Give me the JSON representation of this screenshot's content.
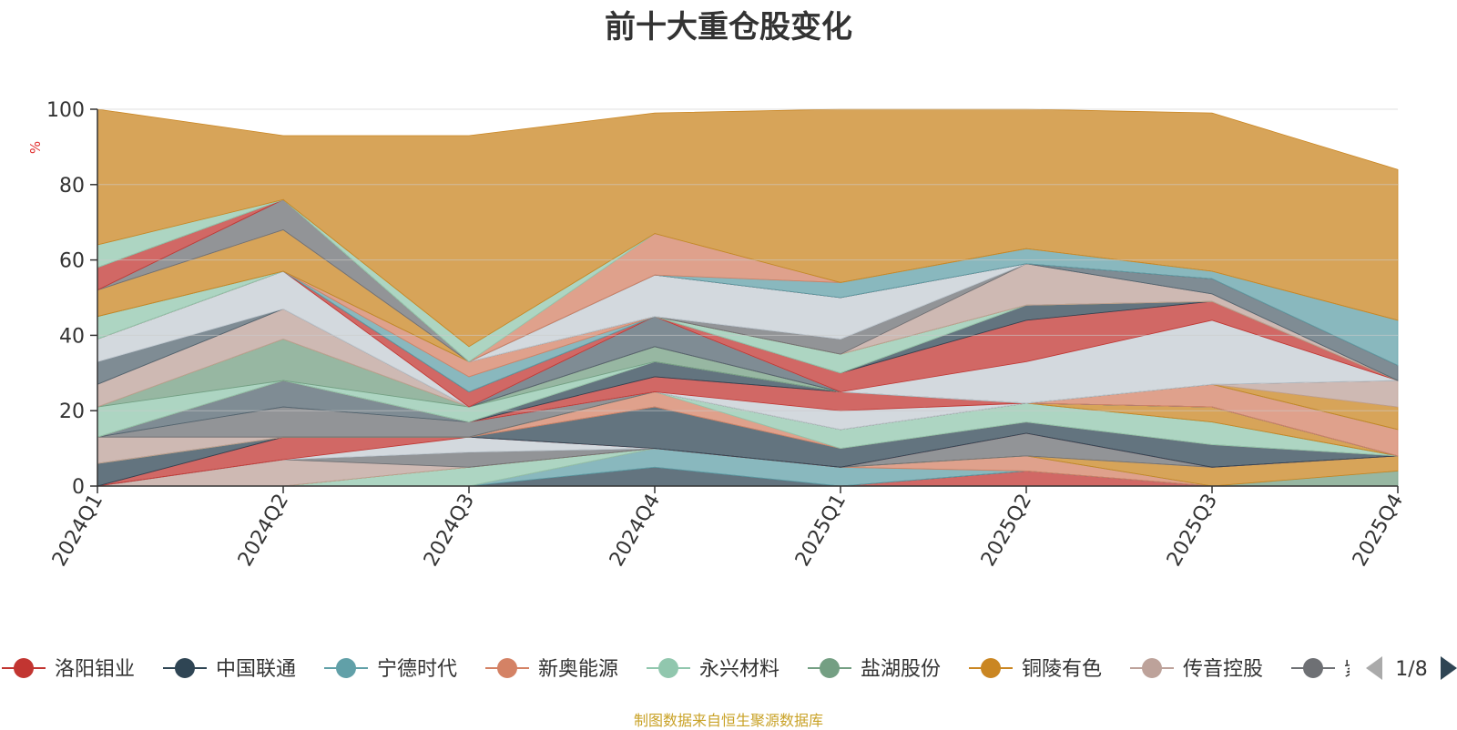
{
  "title": "前十大重仓股变化",
  "source_note": "制图数据来自恒生聚源数据库",
  "legend": {
    "page_indicator": "1/8",
    "truncated_item": "紫"
  },
  "chart_data": {
    "type": "area",
    "stacked": true,
    "title": "前十大重仓股变化",
    "ylabel": "%",
    "ylim": [
      0,
      100
    ],
    "yticks": [
      0,
      20,
      40,
      60,
      80,
      100
    ],
    "categories": [
      "2024Q1",
      "2024Q2",
      "2024Q3",
      "2024Q4",
      "2025Q1",
      "2025Q2",
      "2025Q3",
      "2025Q4"
    ],
    "grid": true,
    "legend_position": "bottom",
    "series": [
      {
        "name": "洛阳钼业",
        "color": "#c23531",
        "values": [
          0,
          0,
          0,
          0,
          0,
          4,
          0,
          0
        ]
      },
      {
        "name": "中国联通",
        "color": "#2f4554",
        "values": [
          0,
          0,
          0,
          5,
          0,
          0,
          0,
          0
        ]
      },
      {
        "name": "宁德时代",
        "color": "#61a0a8",
        "values": [
          0,
          0,
          0,
          5,
          5,
          0,
          0,
          0
        ]
      },
      {
        "name": "新奥能源",
        "color": "#d48265",
        "values": [
          0,
          0,
          0,
          0,
          0,
          4,
          0,
          0
        ]
      },
      {
        "name": "永兴材料",
        "color": "#91c7ae",
        "values": [
          0,
          0,
          5,
          0,
          0,
          0,
          0,
          0
        ]
      },
      {
        "name": "盐湖股份",
        "color": "#749f83",
        "values": [
          0,
          0,
          0,
          0,
          0,
          0,
          0,
          4
        ]
      },
      {
        "name": "铜陵有色",
        "color": "#ca8622",
        "values": [
          0,
          0,
          0,
          0,
          0,
          0,
          5,
          4
        ]
      },
      {
        "name": "传音控股",
        "color": "#bda29a",
        "values": [
          0,
          7,
          0,
          0,
          0,
          0,
          0,
          0
        ]
      },
      {
        "name": "紫",
        "color": "#6e7074",
        "values": [
          0,
          0,
          4,
          0,
          0,
          6,
          0,
          0
        ]
      },
      {
        "name": "",
        "color": "#546570",
        "values": [
          0,
          0,
          0,
          0,
          0,
          0,
          0,
          0
        ]
      },
      {
        "name": "",
        "color": "#c4ccd3",
        "values": [
          0,
          0,
          4,
          0,
          0,
          0,
          0,
          0
        ]
      },
      {
        "name": "",
        "color": "#c23531",
        "values": [
          0,
          6,
          0,
          0,
          0,
          0,
          0,
          0
        ]
      },
      {
        "name": "",
        "color": "#2f4554",
        "values": [
          6,
          0,
          0,
          11,
          5,
          3,
          6,
          0
        ]
      },
      {
        "name": "",
        "color": "#61a0a8",
        "values": [
          0,
          0,
          0,
          0,
          0,
          0,
          0,
          0
        ]
      },
      {
        "name": "",
        "color": "#d48265",
        "values": [
          0,
          0,
          0,
          4,
          0,
          0,
          0,
          0
        ]
      },
      {
        "name": "",
        "color": "#91c7ae",
        "values": [
          0,
          0,
          0,
          0,
          5,
          5,
          6,
          0
        ]
      },
      {
        "name": "",
        "color": "#749f83",
        "values": [
          0,
          0,
          0,
          0,
          0,
          0,
          0,
          0
        ]
      },
      {
        "name": "",
        "color": "#ca8622",
        "values": [
          0,
          0,
          0,
          0,
          0,
          0,
          4,
          0
        ]
      },
      {
        "name": "",
        "color": "#bda29a",
        "values": [
          7,
          0,
          0,
          0,
          0,
          0,
          0,
          0
        ]
      },
      {
        "name": "",
        "color": "#6e7074",
        "values": [
          0,
          8,
          4,
          0,
          0,
          0,
          0,
          0
        ]
      },
      {
        "name": "",
        "color": "#546570",
        "values": [
          0,
          7,
          0,
          0,
          0,
          0,
          0,
          0
        ]
      },
      {
        "name": "",
        "color": "#c4ccd3",
        "values": [
          0,
          0,
          0,
          0,
          5,
          0,
          0,
          0
        ]
      },
      {
        "name": "",
        "color": "#c23531",
        "values": [
          0,
          0,
          0,
          4,
          5,
          0,
          0,
          0
        ]
      },
      {
        "name": "",
        "color": "#2f4554",
        "values": [
          0,
          0,
          0,
          4,
          0,
          0,
          0,
          0
        ]
      },
      {
        "name": "",
        "color": "#61a0a8",
        "values": [
          0,
          0,
          0,
          0,
          0,
          0,
          0,
          0
        ]
      },
      {
        "name": "",
        "color": "#d48265",
        "values": [
          0,
          0,
          0,
          0,
          0,
          0,
          6,
          7
        ]
      },
      {
        "name": "",
        "color": "#91c7ae",
        "values": [
          8,
          0,
          4,
          0,
          0,
          0,
          0,
          0
        ]
      },
      {
        "name": "",
        "color": "#749f83",
        "values": [
          0,
          11,
          0,
          4,
          0,
          0,
          0,
          0
        ]
      },
      {
        "name": "",
        "color": "#ca8622",
        "values": [
          0,
          0,
          0,
          0,
          0,
          0,
          0,
          6
        ]
      },
      {
        "name": "",
        "color": "#bda29a",
        "values": [
          6,
          8,
          0,
          0,
          0,
          0,
          0,
          7
        ]
      },
      {
        "name": "",
        "color": "#6e7074",
        "values": [
          0,
          0,
          0,
          0,
          0,
          0,
          0,
          0
        ]
      },
      {
        "name": "",
        "color": "#546570",
        "values": [
          6,
          0,
          0,
          8,
          0,
          0,
          0,
          0
        ]
      },
      {
        "name": "",
        "color": "#c4ccd3",
        "values": [
          6,
          10,
          0,
          0,
          0,
          11,
          17,
          0
        ]
      },
      {
        "name": "",
        "color": "#c23531",
        "values": [
          0,
          0,
          4,
          0,
          5,
          11,
          5,
          0
        ]
      },
      {
        "name": "",
        "color": "#2f4554",
        "values": [
          0,
          0,
          0,
          0,
          0,
          4,
          0,
          0
        ]
      },
      {
        "name": "",
        "color": "#61a0a8",
        "values": [
          0,
          0,
          4,
          0,
          0,
          0,
          0,
          0
        ]
      },
      {
        "name": "",
        "color": "#d48265",
        "values": [
          0,
          0,
          4,
          0,
          0,
          0,
          0,
          0
        ]
      },
      {
        "name": "",
        "color": "#91c7ae",
        "values": [
          6,
          0,
          0,
          0,
          5,
          0,
          0,
          0
        ]
      },
      {
        "name": "",
        "color": "#749f83",
        "values": [
          0,
          0,
          0,
          0,
          0,
          0,
          0,
          0
        ]
      },
      {
        "name": "",
        "color": "#ca8622",
        "values": [
          7,
          11,
          0,
          0,
          0,
          0,
          0,
          0
        ]
      },
      {
        "name": "",
        "color": "#bda29a",
        "values": [
          0,
          0,
          0,
          0,
          0,
          11,
          2,
          0
        ]
      },
      {
        "name": "",
        "color": "#6e7074",
        "values": [
          0,
          8,
          0,
          0,
          4,
          0,
          0,
          0
        ]
      },
      {
        "name": "",
        "color": "#546570",
        "values": [
          0,
          0,
          0,
          0,
          0,
          0,
          4,
          4
        ]
      },
      {
        "name": "",
        "color": "#c4ccd3",
        "values": [
          0,
          0,
          0,
          11,
          11,
          0,
          0,
          0
        ]
      },
      {
        "name": "",
        "color": "#c23531",
        "values": [
          6,
          0,
          0,
          0,
          0,
          0,
          0,
          0
        ]
      },
      {
        "name": "",
        "color": "#2f4554",
        "values": [
          0,
          0,
          0,
          0,
          0,
          0,
          0,
          0
        ]
      },
      {
        "name": "",
        "color": "#61a0a8",
        "values": [
          0,
          0,
          0,
          0,
          4,
          4,
          2,
          12
        ]
      },
      {
        "name": "",
        "color": "#d48265",
        "values": [
          0,
          0,
          0,
          11,
          0,
          0,
          0,
          0
        ]
      },
      {
        "name": "",
        "color": "#91c7ae",
        "values": [
          6,
          0,
          4,
          0,
          0,
          0,
          0,
          0
        ]
      },
      {
        "name": "",
        "color": "#ca8622",
        "values": [
          36,
          17,
          56,
          32,
          46,
          37,
          42,
          40
        ]
      }
    ]
  }
}
